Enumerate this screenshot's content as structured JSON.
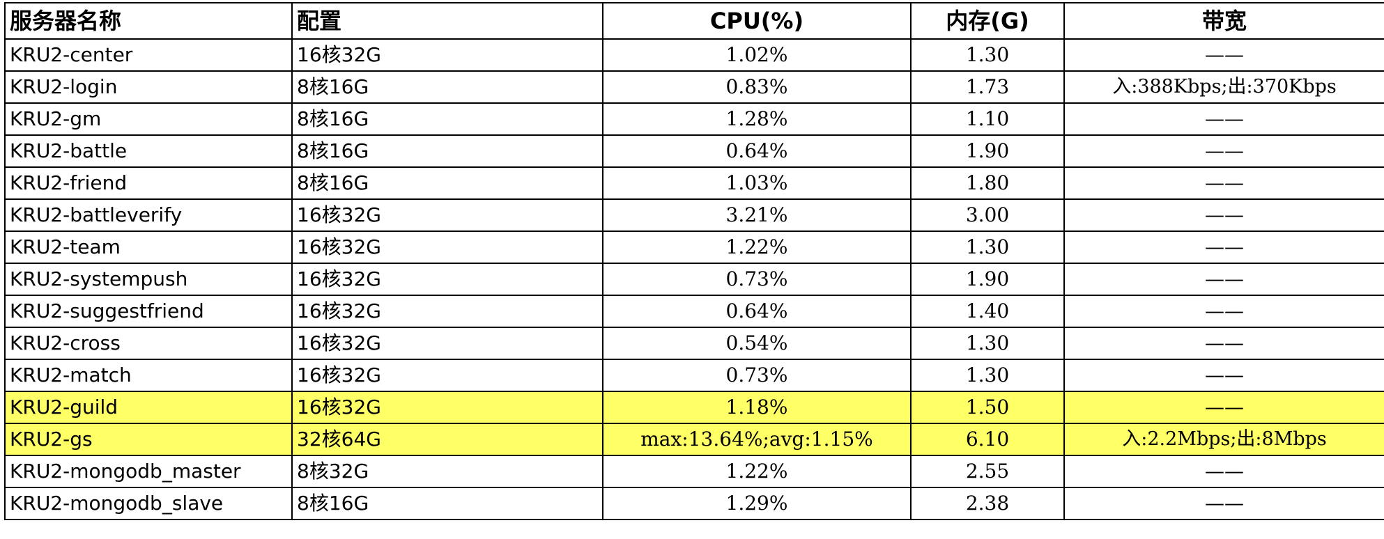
{
  "headers": {
    "name": "服务器名称",
    "config": "配置",
    "cpu": "CPU(%)",
    "mem": "内存(G)",
    "bw": "带宽"
  },
  "highlight_color": "#ffff66",
  "rows": [
    {
      "name": "KRU2-center",
      "config": "16核32G",
      "cpu": "1.02%",
      "mem": "1.30",
      "bw": "——",
      "highlight": false
    },
    {
      "name": "KRU2-login",
      "config": "8核16G",
      "cpu": "0.83%",
      "mem": "1.73",
      "bw": "入:388Kbps;出:370Kbps",
      "highlight": false
    },
    {
      "name": "KRU2-gm",
      "config": "8核16G",
      "cpu": "1.28%",
      "mem": "1.10",
      "bw": "——",
      "highlight": false
    },
    {
      "name": "KRU2-battle",
      "config": "8核16G",
      "cpu": "0.64%",
      "mem": "1.90",
      "bw": "——",
      "highlight": false
    },
    {
      "name": "KRU2-friend",
      "config": "8核16G",
      "cpu": "1.03%",
      "mem": "1.80",
      "bw": "——",
      "highlight": false
    },
    {
      "name": "KRU2-battleverify",
      "config": "16核32G",
      "cpu": "3.21%",
      "mem": "3.00",
      "bw": "——",
      "highlight": false
    },
    {
      "name": "KRU2-team",
      "config": "16核32G",
      "cpu": "1.22%",
      "mem": "1.30",
      "bw": "——",
      "highlight": false
    },
    {
      "name": "KRU2-systempush",
      "config": "16核32G",
      "cpu": "0.73%",
      "mem": "1.90",
      "bw": "——",
      "highlight": false
    },
    {
      "name": "KRU2-suggestfriend",
      "config": "16核32G",
      "cpu": "0.64%",
      "mem": "1.40",
      "bw": "——",
      "highlight": false
    },
    {
      "name": "KRU2-cross",
      "config": "16核32G",
      "cpu": "0.54%",
      "mem": "1.30",
      "bw": "——",
      "highlight": false
    },
    {
      "name": "KRU2-match",
      "config": "16核32G",
      "cpu": "0.73%",
      "mem": "1.30",
      "bw": "——",
      "highlight": false
    },
    {
      "name": "KRU2-guild",
      "config": "16核32G",
      "cpu": "1.18%",
      "mem": "1.50",
      "bw": "——",
      "highlight": true
    },
    {
      "name": "KRU2-gs",
      "config": "32核64G",
      "cpu": "max:13.64%;avg:1.15%",
      "mem": "6.10",
      "bw": "入:2.2Mbps;出:8Mbps",
      "highlight": true
    },
    {
      "name": "KRU2-mongodb_master",
      "config": "8核32G",
      "cpu": "1.22%",
      "mem": "2.55",
      "bw": "——",
      "highlight": false
    },
    {
      "name": "KRU2-mongodb_slave",
      "config": "8核16G",
      "cpu": "1.29%",
      "mem": "2.38",
      "bw": "——",
      "highlight": false
    }
  ]
}
